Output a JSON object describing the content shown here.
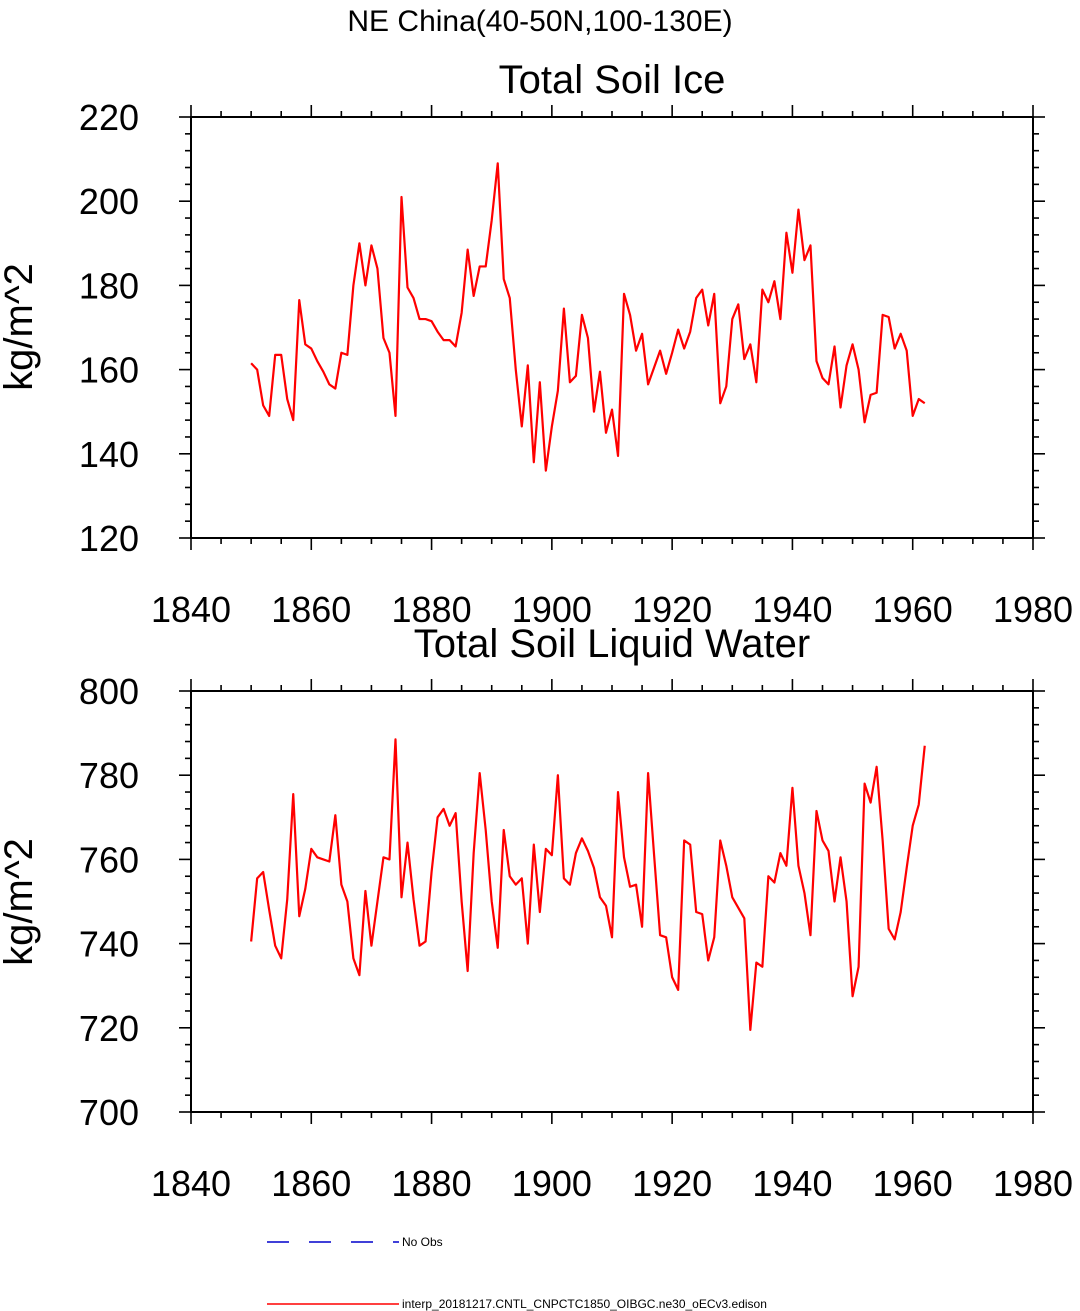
{
  "figure": {
    "suptitle": "NE China(40-50N,100-130E)"
  },
  "legend": [
    {
      "label": "No Obs",
      "color": "#0000cc",
      "style": "dashed"
    },
    {
      "label": "interp_20181217.CNTL_CNPCTC1850_OIBGC.ne30_oECv3.edison",
      "color": "#ff0000",
      "style": "solid"
    }
  ],
  "chart_data": [
    {
      "type": "line",
      "title": "Total Soil Ice",
      "xlabel": "",
      "ylabel": "kg/m^2",
      "xlim": [
        1840,
        1980
      ],
      "ylim": [
        120,
        220
      ],
      "xticks": [
        1840,
        1860,
        1880,
        1900,
        1920,
        1940,
        1960,
        1980
      ],
      "yticks": [
        120,
        140,
        160,
        180,
        200,
        220
      ],
      "xtick_labels": [
        "1840",
        "1860",
        "1880",
        "1900",
        "1920",
        "1940",
        "1960",
        "1980"
      ],
      "ytick_labels": [
        "120",
        "140",
        "160",
        "180",
        "200",
        "220"
      ],
      "grid": false,
      "series": [
        {
          "name": "interp_20181217.CNTL_CNPCTC1850_OIBGC.ne30_oECv3.edison",
          "color": "#ff0000",
          "x_start": 1850,
          "x_step": 1,
          "values": [
            161.5,
            160,
            151.5,
            149,
            163.5,
            163.5,
            153,
            148,
            176.5,
            166,
            165,
            162,
            159.5,
            156.5,
            155.5,
            164,
            163.5,
            180,
            190,
            180,
            189.5,
            184,
            167.5,
            164,
            149,
            201,
            179.5,
            177,
            172,
            172,
            171.5,
            169,
            167,
            167,
            165.5,
            173.5,
            188.5,
            177.5,
            184.5,
            184.5,
            195.5,
            209,
            181.5,
            177,
            160,
            146.5,
            161,
            138,
            157,
            136,
            146.5,
            155,
            174.5,
            157,
            158.5,
            173,
            167.5,
            150,
            159.5,
            145,
            150.5,
            139.5,
            178,
            173,
            164.5,
            168.5,
            156.5,
            160.5,
            164.5,
            159,
            164,
            169.5,
            165,
            169,
            177,
            179,
            170.5,
            178,
            152,
            156,
            172,
            175.5,
            162.5,
            166,
            157,
            179,
            176,
            181,
            172,
            192.5,
            183,
            198,
            186,
            189.5,
            162,
            158,
            156.5,
            165.5,
            151,
            161,
            166,
            160,
            147.5,
            154,
            154.5,
            173,
            172.5,
            165,
            168.5,
            164.5,
            149,
            153,
            152
          ]
        }
      ]
    },
    {
      "type": "line",
      "title": "Total Soil Liquid Water",
      "xlabel": "",
      "ylabel": "kg/m^2",
      "xlim": [
        1840,
        1980
      ],
      "ylim": [
        700,
        800
      ],
      "xticks": [
        1840,
        1860,
        1880,
        1900,
        1920,
        1940,
        1960,
        1980
      ],
      "yticks": [
        700,
        720,
        740,
        760,
        780,
        800
      ],
      "xtick_labels": [
        "1840",
        "1860",
        "1880",
        "1900",
        "1920",
        "1940",
        "1960",
        "1980"
      ],
      "ytick_labels": [
        "700",
        "720",
        "740",
        "760",
        "780",
        "800"
      ],
      "grid": false,
      "series": [
        {
          "name": "interp_20181217.CNTL_CNPCTC1850_OIBGC.ne30_oECv3.edison",
          "color": "#ff0000",
          "x_start": 1850,
          "x_step": 1,
          "values": [
            740.5,
            755.5,
            757,
            748,
            739.5,
            736.5,
            750.5,
            775.5,
            746.5,
            753,
            762.5,
            760.5,
            760,
            759.5,
            770.5,
            754,
            750,
            736.5,
            732.5,
            752.5,
            739.5,
            750,
            760.5,
            760,
            788.5,
            751,
            764,
            750.5,
            739.5,
            740.5,
            757,
            770,
            772,
            768,
            771,
            750,
            733.5,
            761.5,
            780.5,
            767,
            750,
            739,
            767,
            756,
            754,
            755.5,
            740,
            763.5,
            747.5,
            762.5,
            761,
            780,
            755.5,
            754,
            761.5,
            765,
            762,
            758,
            751,
            749,
            741.5,
            776,
            760.5,
            753.5,
            754,
            744,
            780.5,
            761,
            742,
            741.5,
            732,
            729,
            764.5,
            763.5,
            747.5,
            747,
            736,
            741.5,
            764.5,
            758.5,
            751,
            748.5,
            746,
            719.5,
            735.5,
            734.5,
            756,
            754.5,
            761.5,
            758.5,
            777,
            758.5,
            752,
            742,
            771.5,
            764.5,
            762,
            750,
            760.5,
            750,
            727.5,
            734.5,
            778,
            773.5,
            782,
            764.5,
            743.5,
            741,
            747.5,
            758,
            768,
            773,
            787
          ]
        }
      ]
    }
  ]
}
